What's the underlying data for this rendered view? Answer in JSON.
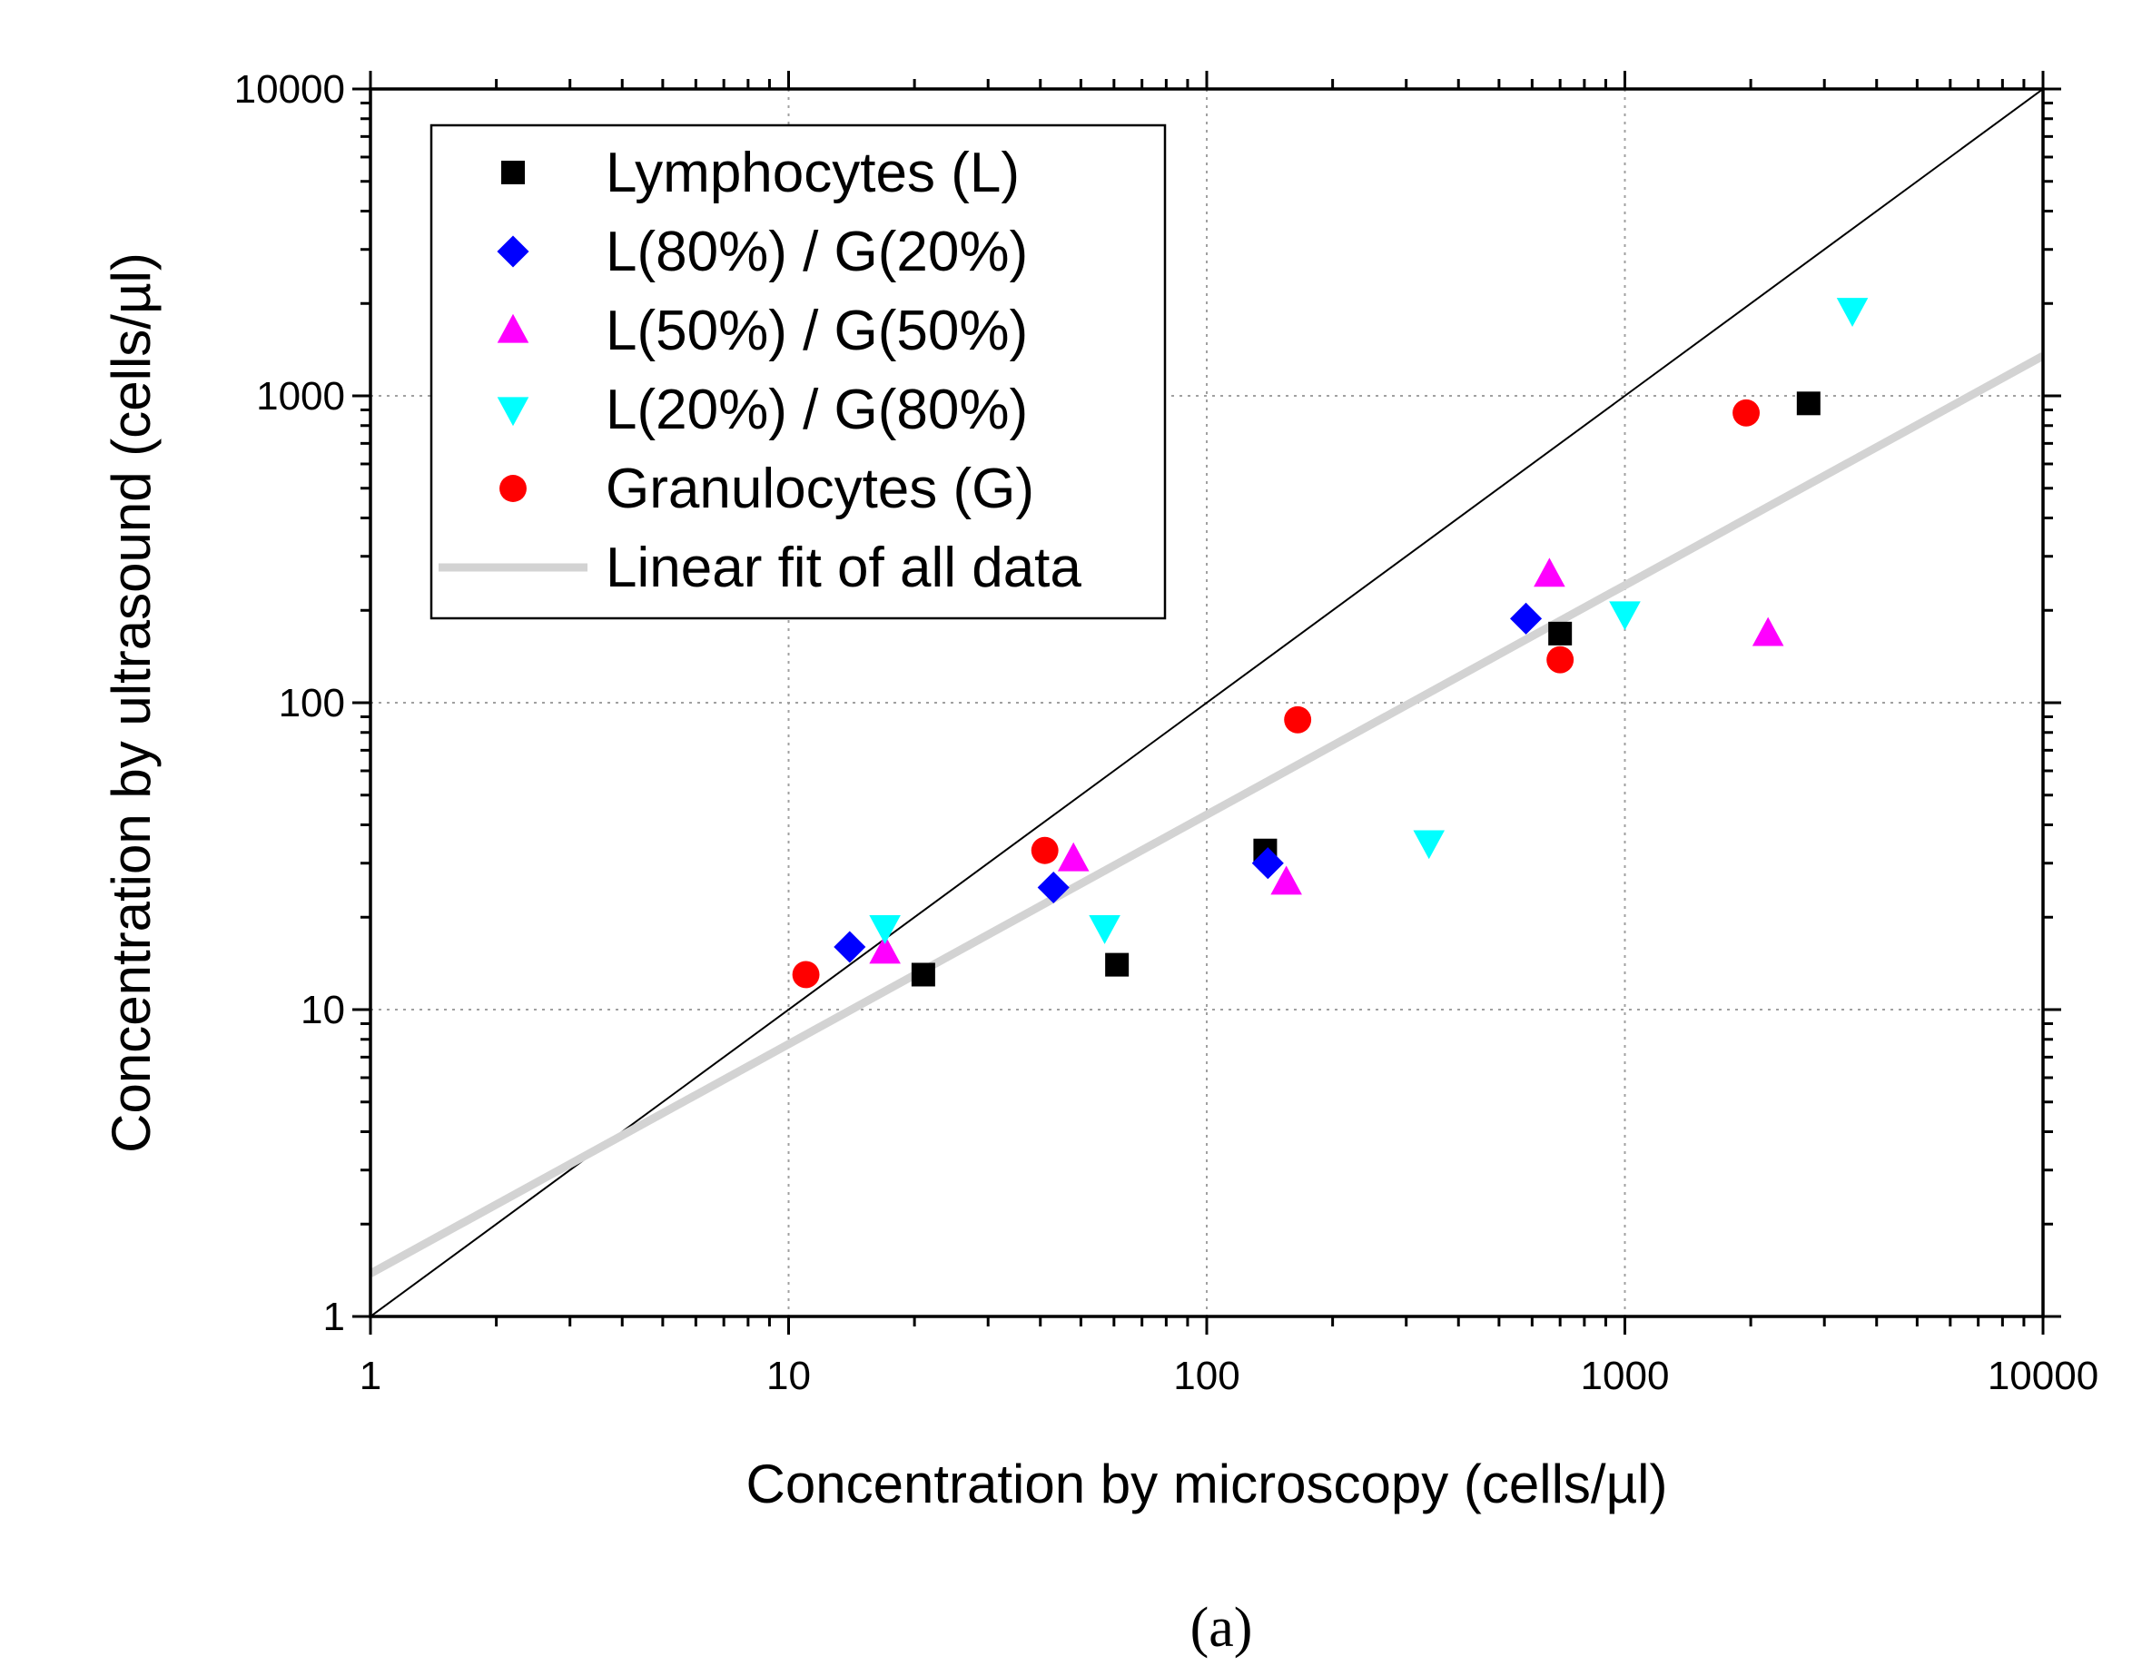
{
  "chart_data": {
    "type": "scatter",
    "xscale": "log",
    "yscale": "log",
    "xlim": [
      1,
      10000
    ],
    "ylim": [
      1,
      10000
    ],
    "xlabel": "Concentration by microscopy (cells/µl)",
    "ylabel": "Concentration by ultrasound (cells/µl)",
    "x_ticks": [
      "1",
      "10",
      "100",
      "1000",
      "10000"
    ],
    "y_ticks": [
      "1",
      "10",
      "100",
      "1000",
      "10000"
    ],
    "grid": true,
    "legend_position": "top-left",
    "caption": "(a)",
    "series": [
      {
        "name": "Lymphocytes (L)",
        "marker": "square",
        "color": "#000000",
        "points": [
          [
            21,
            13
          ],
          [
            61,
            14
          ],
          [
            138,
            33
          ],
          [
            700,
            168
          ],
          [
            2750,
            945
          ]
        ]
      },
      {
        "name": "L(80%) / G(20%)",
        "marker": "diamond",
        "color": "#0000ff",
        "points": [
          [
            14,
            16
          ],
          [
            43,
            25
          ],
          [
            140,
            30
          ],
          [
            580,
            188
          ]
        ]
      },
      {
        "name": "L(50%) / G(50%)",
        "marker": "triangle-up",
        "color": "#ff00ff",
        "points": [
          [
            17,
            15.5
          ],
          [
            48,
            31
          ],
          [
            155,
            26
          ],
          [
            660,
            262
          ],
          [
            2200,
            168
          ]
        ]
      },
      {
        "name": "L(20%) / G(80%)",
        "marker": "triangle-down",
        "color": "#00ffff",
        "points": [
          [
            17,
            18.5
          ],
          [
            57,
            18.5
          ],
          [
            340,
            35
          ],
          [
            1000,
            195
          ],
          [
            3500,
            1900
          ]
        ]
      },
      {
        "name": "Granulocytes (G)",
        "marker": "circle",
        "color": "#ff0000",
        "points": [
          [
            11,
            13
          ],
          [
            41,
            33
          ],
          [
            165,
            88
          ],
          [
            700,
            138
          ],
          [
            1950,
            880
          ]
        ]
      }
    ],
    "fit_line": {
      "name": "Linear fit of all data",
      "color": "#d3d3d3",
      "x": [
        1,
        10000
      ],
      "y": [
        1.38,
        1350
      ]
    },
    "identity_line": {
      "x": [
        1,
        10000
      ],
      "y": [
        1,
        10000
      ],
      "color": "#000000"
    }
  }
}
